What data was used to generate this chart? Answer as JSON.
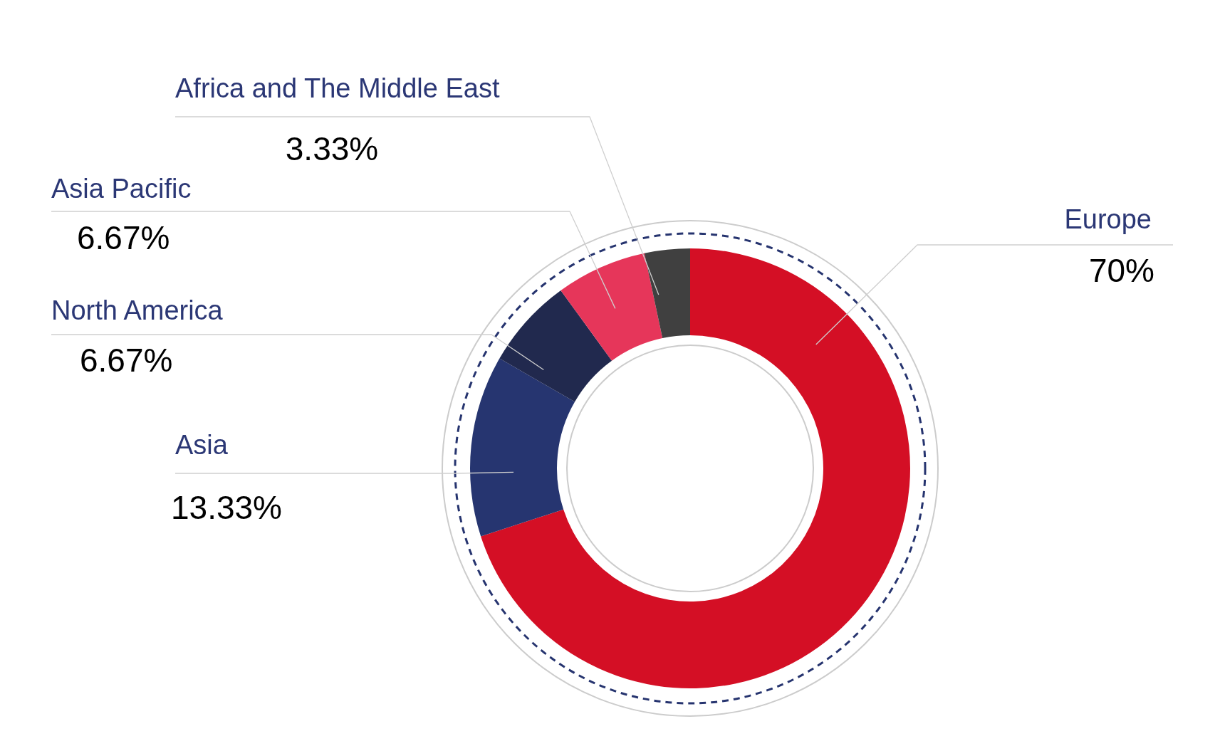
{
  "chart_data": {
    "type": "donut",
    "categories": [
      "Europe",
      "Asia",
      "North America",
      "Asia Pacific",
      "Africa and The Middle East"
    ],
    "values": [
      70,
      13.33,
      6.67,
      6.67,
      3.33
    ],
    "colors": [
      "#d40f25",
      "#263570",
      "#21294e",
      "#e6365a",
      "#404040"
    ],
    "value_labels": [
      "70%",
      "13.33%",
      "6.67%",
      "6.67%",
      "3.33%"
    ]
  }
}
